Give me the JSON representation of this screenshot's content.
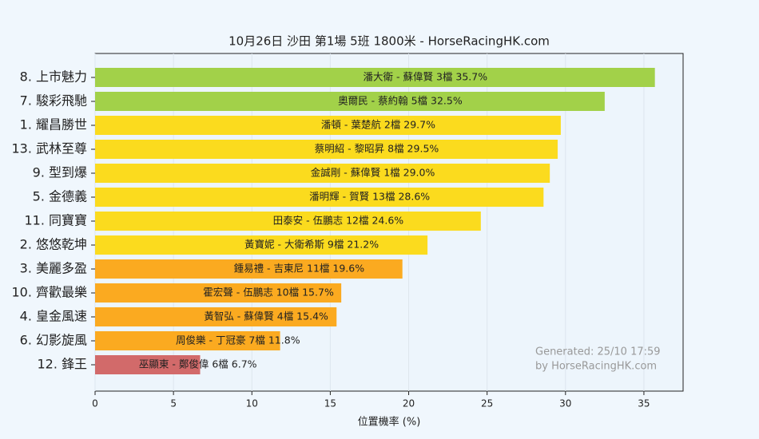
{
  "chart_data": {
    "type": "barh",
    "title": "10月26日  沙田  第1場  5班  1800米 - HorseRacingHK.com",
    "x_label": "位置機率 (%)",
    "categories": [
      "8. 上市魅力",
      "7. 駿彩飛馳",
      "1. 耀昌勝世",
      "13. 武林至尊",
      "9. 型到爆",
      "5. 金德義",
      "11. 同寶寶",
      "2. 悠悠乾坤",
      "3. 美麗多盈",
      "10. 齊歡最樂",
      "4. 皇金風速",
      "6. 幻影旋風",
      "12. 鋒王"
    ],
    "values": [
      35.7,
      32.5,
      29.7,
      29.5,
      29.0,
      28.6,
      24.6,
      21.2,
      19.6,
      15.7,
      15.4,
      11.8,
      6.7
    ],
    "value_labels": [
      "潘大衛 - 蘇偉賢 3檔  35.7%",
      "奧爾民 - 蔡約翰 5檔  32.5%",
      "潘頓 - 葉楚航 2檔  29.7%",
      "蔡明紹 - 黎昭昇 8檔  29.5%",
      "金誠剛 - 蘇偉賢 1檔  29.0%",
      "潘明輝 - 賀賢 13檔  28.6%",
      "田泰安 - 伍鵬志 12檔  24.6%",
      "黃寶妮 - 大衛希斯 9檔  21.2%",
      "鍾易禮 - 吉東尼 11檔  19.6%",
      "霍宏聲 - 伍鵬志 10檔  15.7%",
      "黃智弘 - 蘇偉賢 4檔  15.4%",
      "周俊樂 - 丁冠豪 7檔  11.8%",
      "巫顯東 - 鄭俊偉 6檔  6.7%"
    ],
    "colors": [
      "#a2d149",
      "#a2d149",
      "#fbdb1e",
      "#fbdb1e",
      "#fbdb1e",
      "#fbdb1e",
      "#fbdb1e",
      "#fbdb1e",
      "#fbaa20",
      "#fbaa20",
      "#fbaa20",
      "#fbaa20",
      "#d26a6a"
    ],
    "xlim": [
      0,
      37.5
    ],
    "xticks": [
      0,
      5,
      10,
      15,
      20,
      25,
      30,
      35
    ],
    "grid": true,
    "annotations": [
      "Generated: 25/10 17:59",
      "by HorseRacingHK.com"
    ]
  }
}
